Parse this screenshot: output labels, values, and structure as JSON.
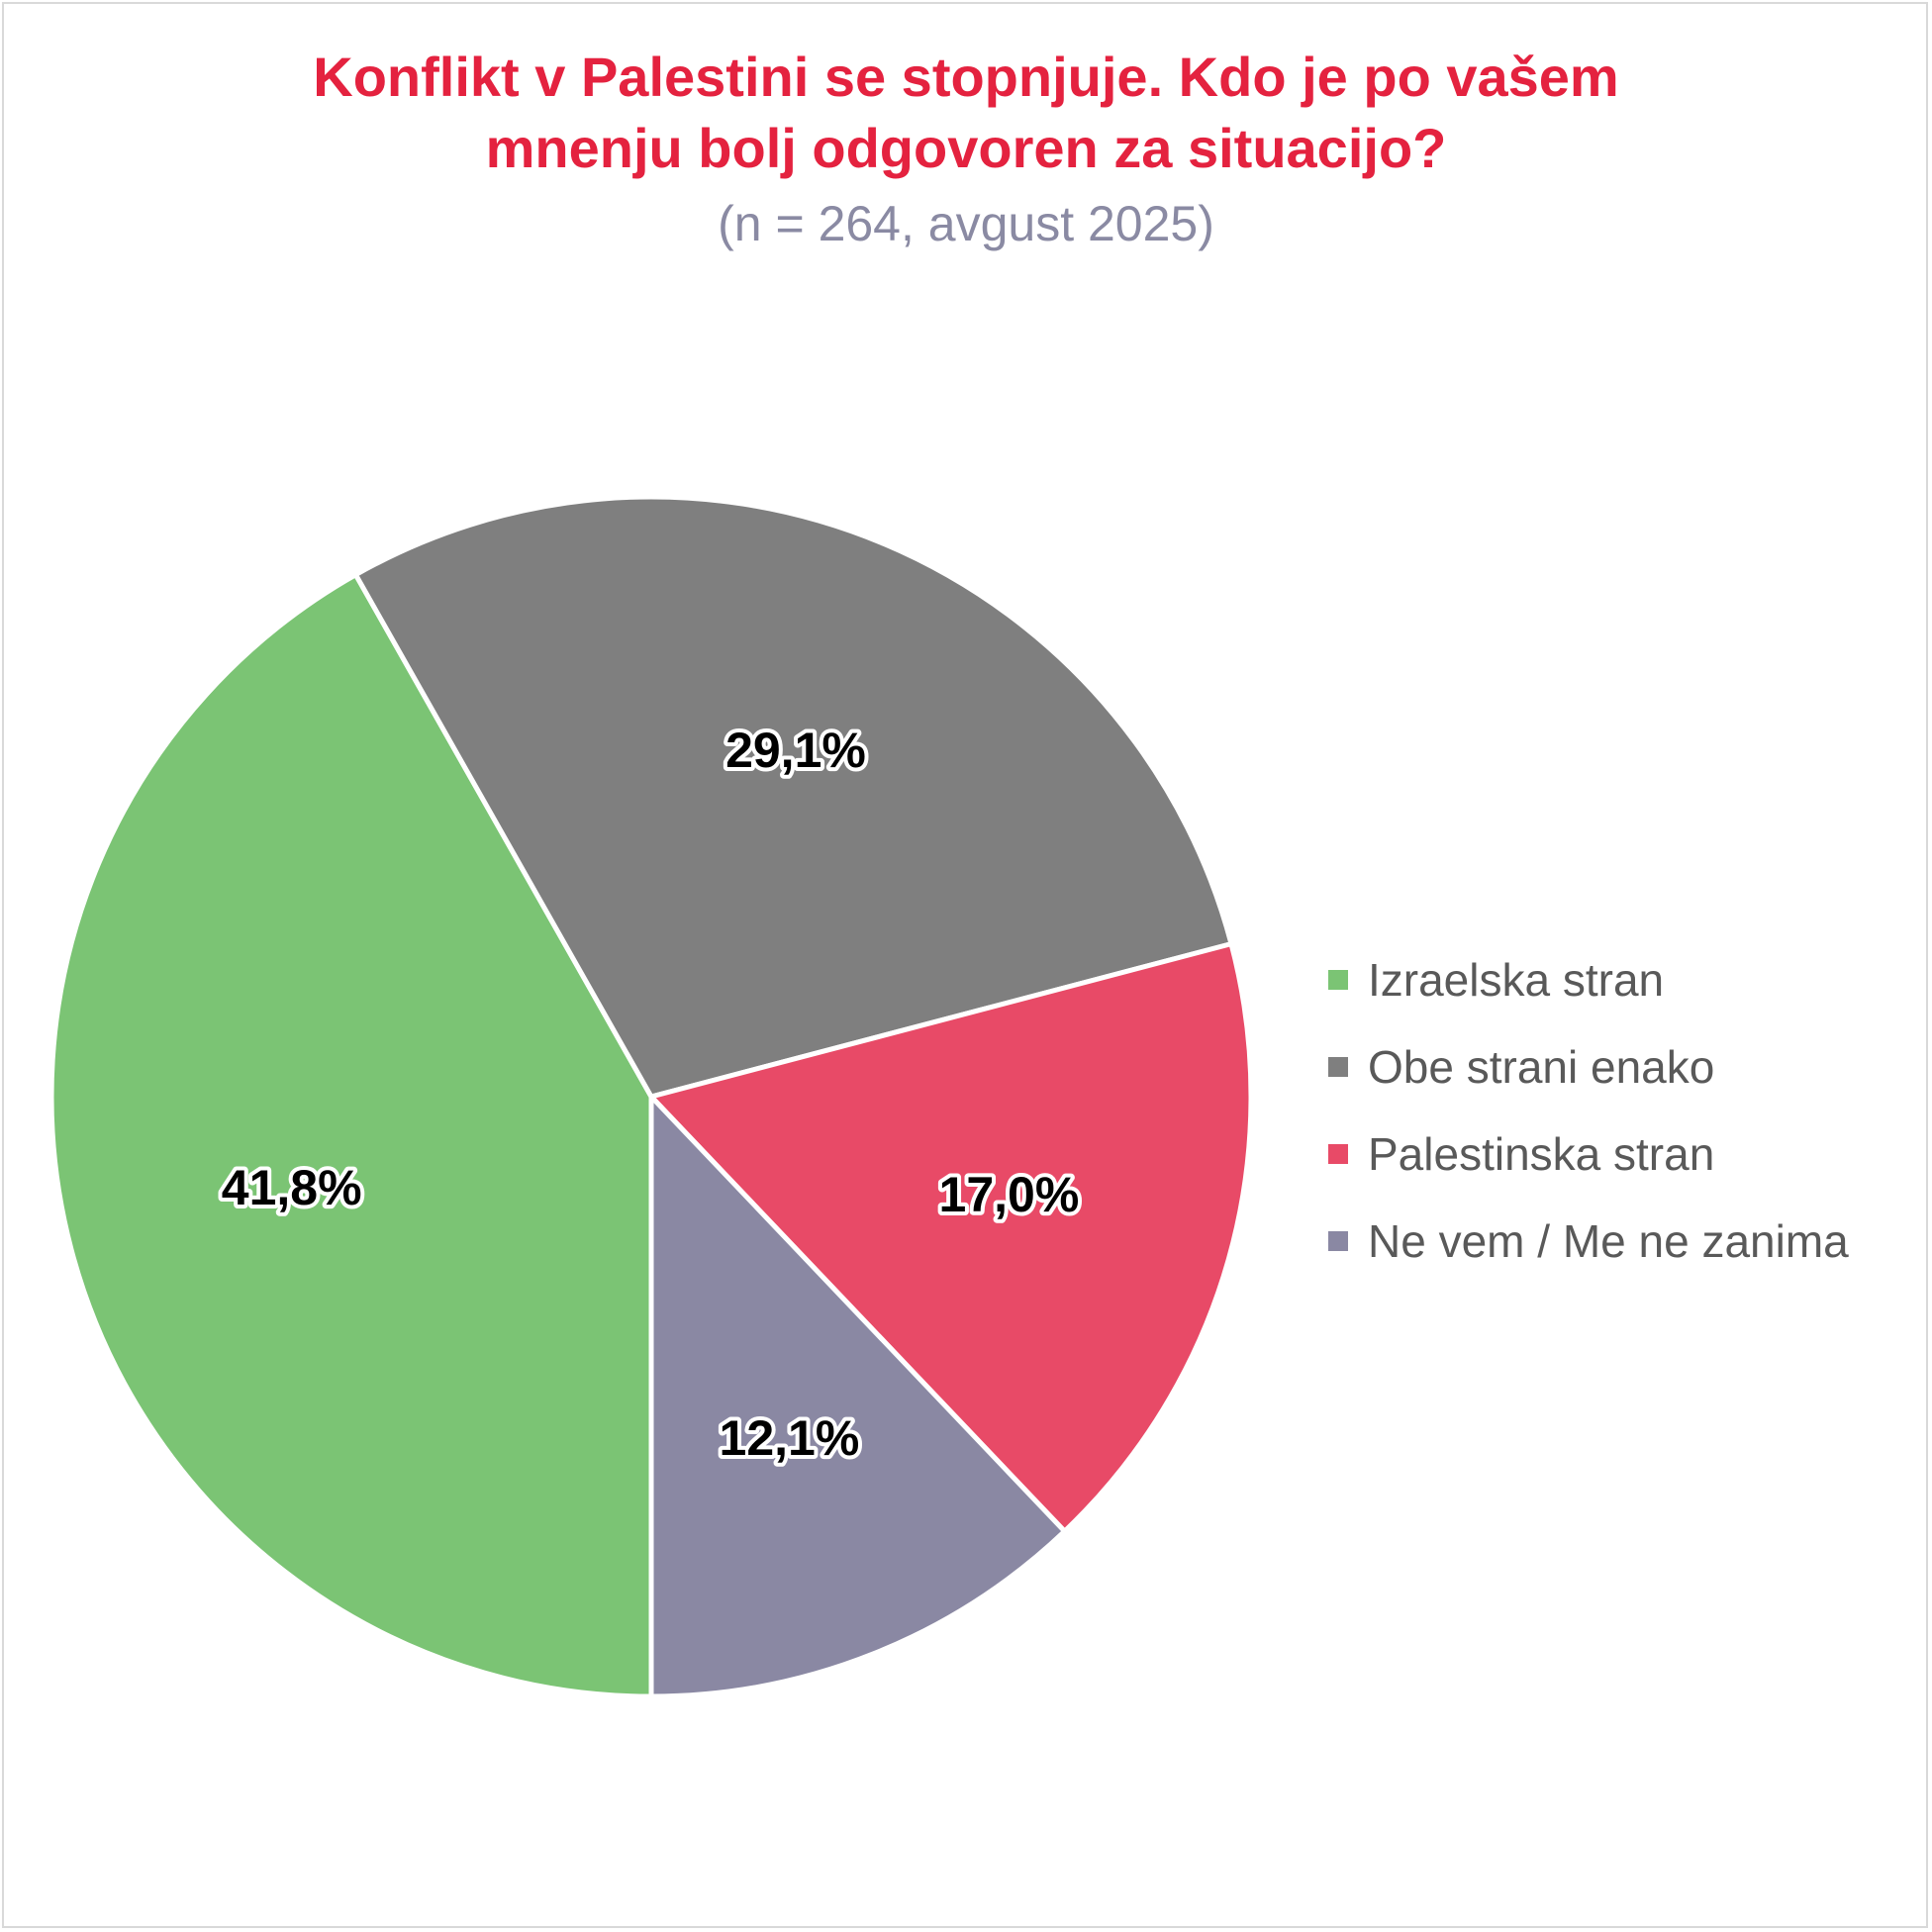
{
  "chart_data": {
    "type": "pie",
    "title_lines": [
      "Konflikt v Palestini se stopnjuje. Kdo je po vašem",
      "mnenju bolj odgovoren za situacijo?"
    ],
    "subtitle": "(n = 264, avgust 2025)",
    "legend_position": "right",
    "slices": [
      {
        "name": "Izraelska stran",
        "value": 41.8,
        "label": "41,8%",
        "color": "#7bc474"
      },
      {
        "name": "Obe strani enako",
        "value": 29.1,
        "label": "29,1%",
        "color": "#7f7f7f"
      },
      {
        "name": "Palestinska stran",
        "value": 17.0,
        "label": "17,0%",
        "color": "#e84a67"
      },
      {
        "name": "Ne vem / Me ne zanima",
        "value": 12.1,
        "label": "12,1%",
        "color": "#8a88a3"
      }
    ]
  }
}
